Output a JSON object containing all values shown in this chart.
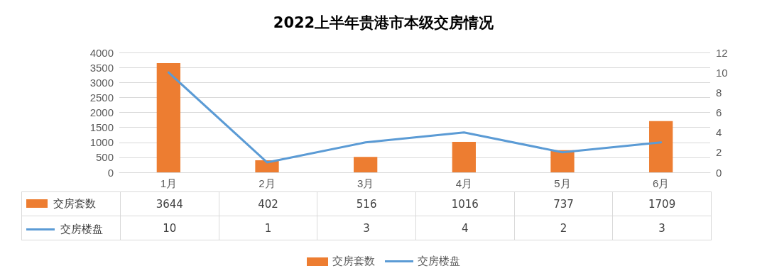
{
  "chart_data": {
    "type": "bar",
    "title": "2022上半年贵港市本级交房情况",
    "categories": [
      "1月",
      "2月",
      "3月",
      "4月",
      "5月",
      "6月"
    ],
    "series": [
      {
        "name": "交房套数",
        "color": "#ed7d31",
        "values": [
          3644,
          402,
          516,
          1016,
          737,
          1709
        ]
      },
      {
        "name": "交房楼盘",
        "type": "line",
        "axis": "y2",
        "color": "#5b9bd5",
        "marker": "none",
        "values": [
          10,
          1,
          3,
          4,
          2,
          3
        ]
      }
    ],
    "ylim": [
      0,
      4000
    ],
    "yticks": [
      0,
      500,
      1000,
      1500,
      2000,
      2500,
      3000,
      3500,
      4000
    ],
    "y2lim": [
      0,
      12
    ],
    "y2ticks": [
      0,
      2,
      4,
      6,
      8,
      10,
      12
    ],
    "grid": "y",
    "legend": "bottom",
    "data_labels": true
  }
}
